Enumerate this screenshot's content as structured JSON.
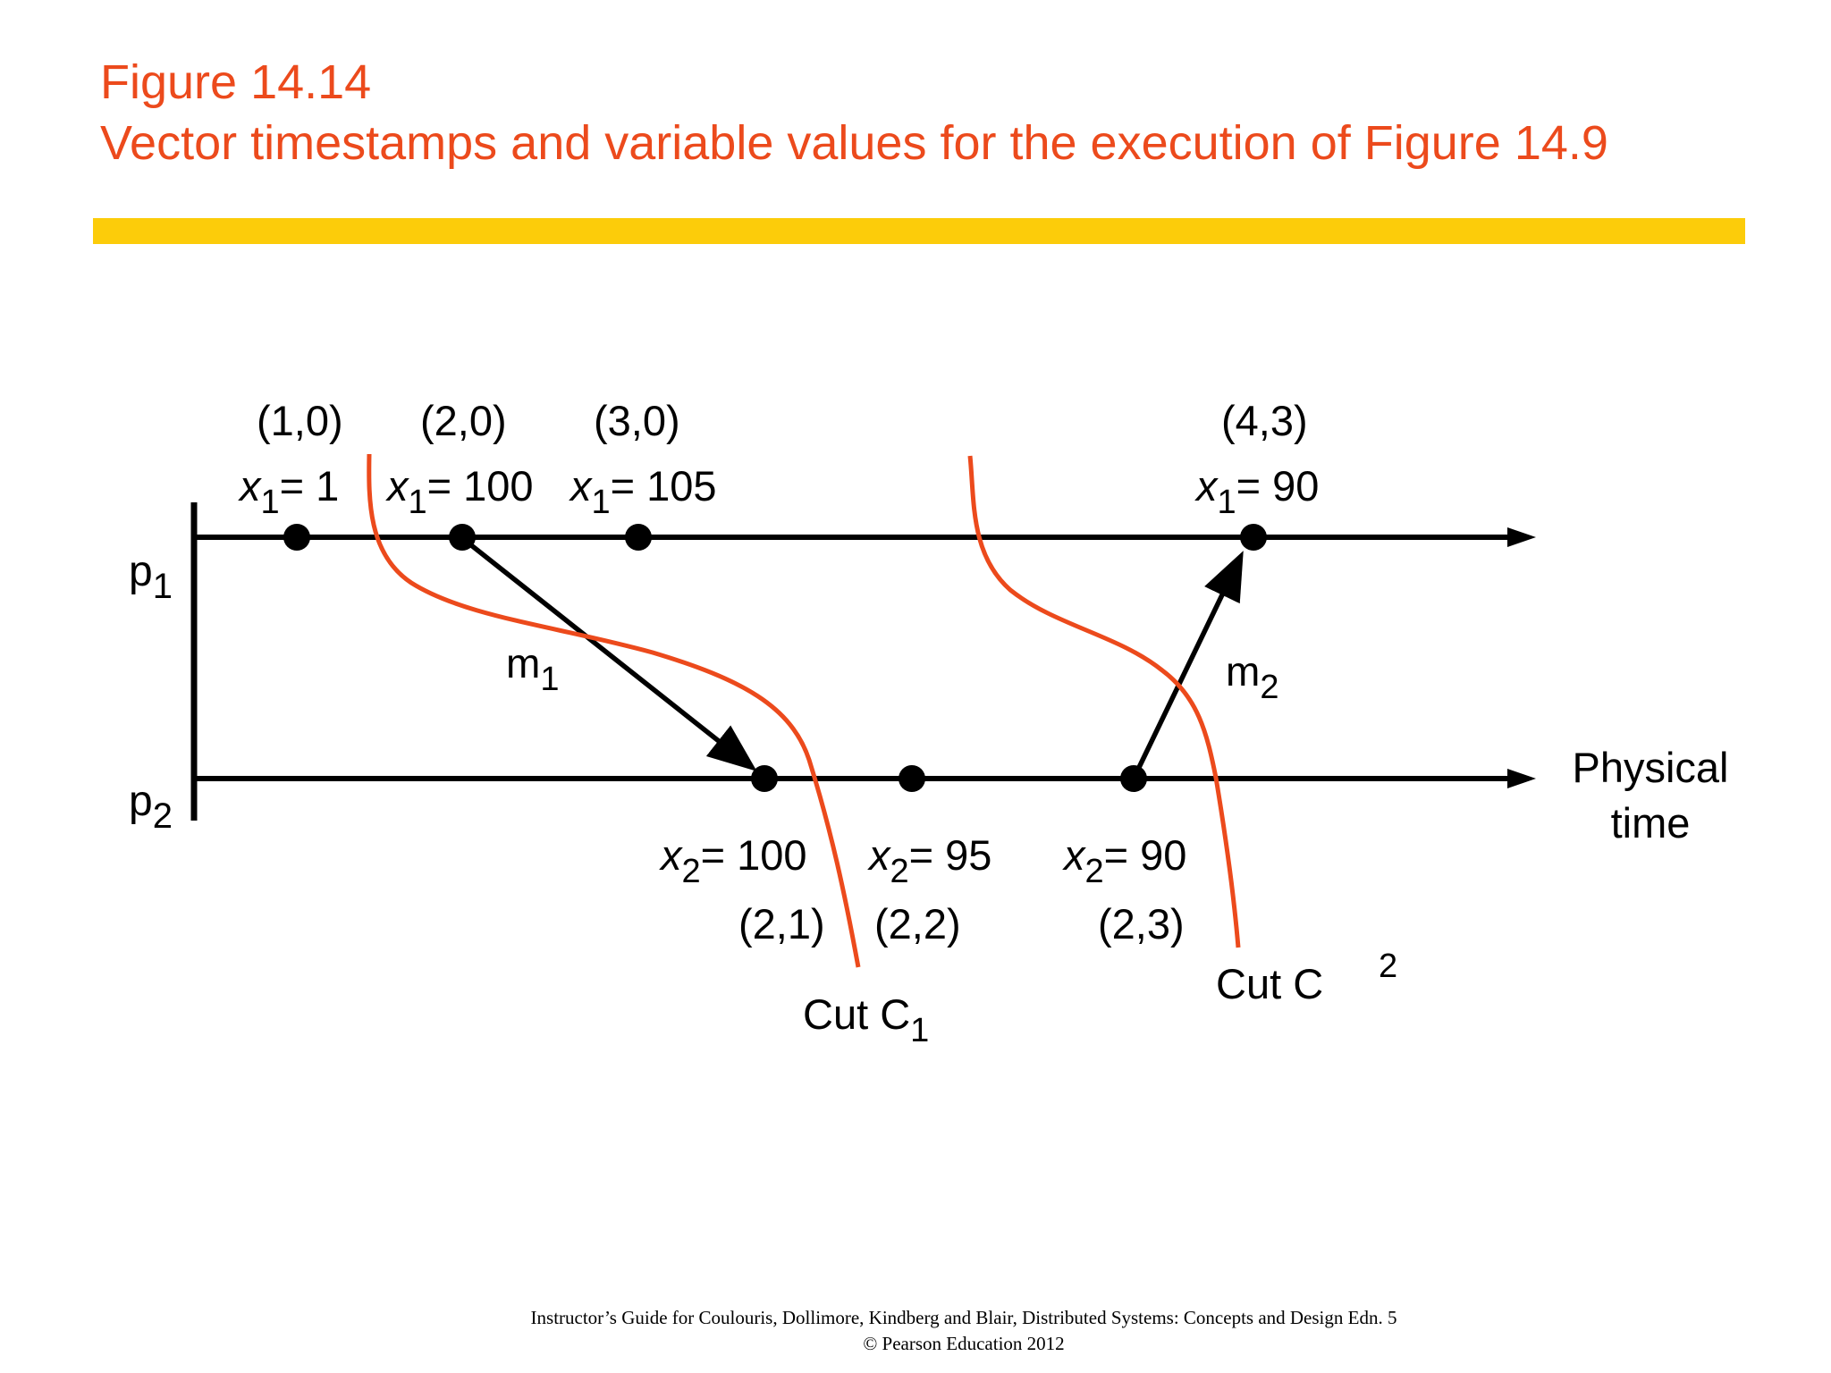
{
  "header": {
    "figure_label": "Figure 14.14",
    "caption": "Vector timestamps and variable values for the execution of Figure 14.9"
  },
  "colors": {
    "title": "#ec4a1c",
    "rule_bar": "#fccc0a",
    "cut_line": "#ec4a1c",
    "ink": "#000000"
  },
  "processes": {
    "p1": {
      "base": "p",
      "sub": "1"
    },
    "p2": {
      "base": "p",
      "sub": "2"
    }
  },
  "p1_events": [
    {
      "timestamp": "(1,0)",
      "var": "x",
      "sub": "1",
      "value": "= 1"
    },
    {
      "timestamp": "(2,0)",
      "var": "x",
      "sub": "1",
      "value": "= 100"
    },
    {
      "timestamp": "(3,0)",
      "var": "x",
      "sub": "1",
      "value": "= 105"
    },
    {
      "timestamp": "(4,3)",
      "var": "x",
      "sub": "1",
      "value": "= 90"
    }
  ],
  "p2_events": [
    {
      "timestamp": "(2,1)",
      "var": "x",
      "sub": "2",
      "value": "= 100"
    },
    {
      "timestamp": "(2,2)",
      "var": "x",
      "sub": "2",
      "value": "= 95"
    },
    {
      "timestamp": "(2,3)",
      "var": "x",
      "sub": "2",
      "value": "= 90"
    }
  ],
  "messages": {
    "m1": {
      "base": "m",
      "sub": "1"
    },
    "m2": {
      "base": "m",
      "sub": "2"
    }
  },
  "cuts": {
    "c1": {
      "label": "Cut C",
      "sub": "1"
    },
    "c2": {
      "label": "Cut C",
      "sub": "2"
    }
  },
  "axis": {
    "line1": "Physical",
    "line2": "time"
  },
  "footer": {
    "line1": "Instructor’s Guide for  Coulouris, Dollimore, Kindberg and Blair,  Distributed Systems: Concepts and Design   Edn. 5",
    "line2": "©  Pearson Education 2012"
  }
}
